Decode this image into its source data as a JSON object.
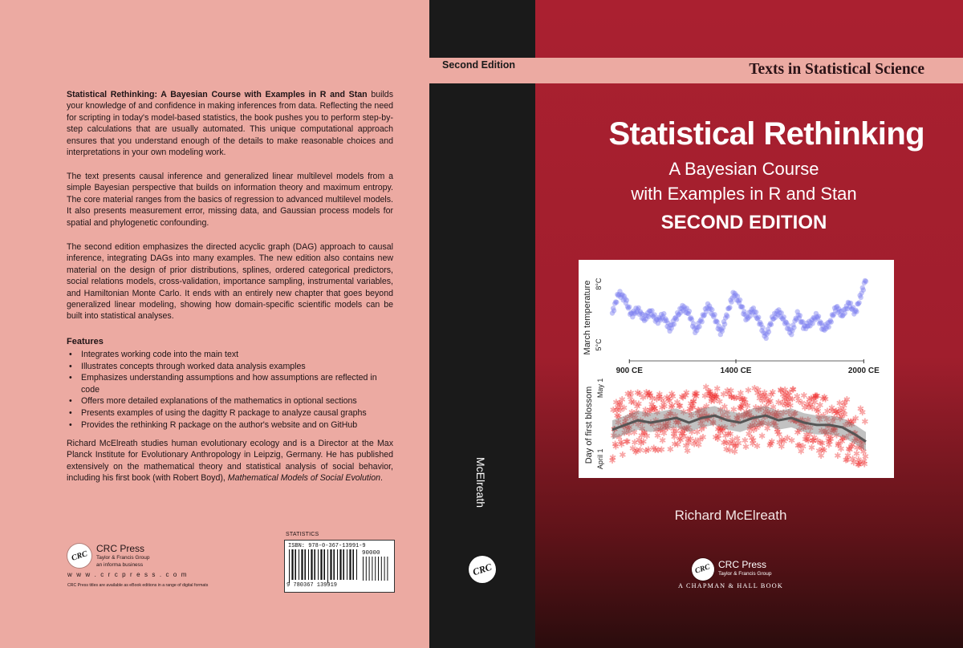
{
  "back_cover": {
    "paragraphs": [
      {
        "lead": "Statistical Rethinking: A Bayesian Course with Examples in R and Stan",
        "text": " builds your knowledge of and confidence in making inferences from data. Reflecting the need for scripting in today's model-based statistics, the book pushes you to perform step-by-step calculations that are usually automated. This unique computational approach ensures that you understand enough of the details to make reasonable choices and interpretations in your own modeling work."
      },
      {
        "text": "The text presents causal inference and generalized linear multilevel models from a simple Bayesian perspective that builds on information theory and maximum entropy. The core material ranges from the basics of regression to advanced multilevel models. It also presents measurement error, missing data, and Gaussian process models for spatial and phylogenetic confounding."
      },
      {
        "text": "The second edition emphasizes the directed acyclic graph (DAG) approach to causal inference, integrating DAGs into many examples. The new edition also contains new material on the design of prior distributions, splines, ordered categorical predictors, social relations models, cross-validation, importance sampling, instrumental variables, and Hamiltonian Monte Carlo. It ends with an entirely new chapter that goes beyond generalized linear modeling, showing how domain-specific scientific models can be built into statistical analyses."
      }
    ],
    "features_heading": "Features",
    "features": [
      "Integrates working code into the main text",
      "Illustrates concepts through worked data analysis examples",
      "Emphasizes understanding assumptions and how assumptions are reflected in code",
      "Offers more detailed explanations of the mathematics in optional sections",
      "Presents examples of using the dagitty R package to analyze causal graphs",
      "Provides the rethinking R package on the author's website and on GitHub"
    ],
    "bio": {
      "text": "Richard McElreath studies human evolutionary ecology and is a Director at the Max Planck Institute for Evolutionary Anthropology in Leipzig, Germany. He has published extensively on the mathematical theory and statistical analysis of social behavior, including his first book (with Robert Boyd), ",
      "book": "Mathematical Models of Social Evolution",
      "tail": "."
    },
    "publisher": {
      "logo_text": "CRC",
      "name": "CRC Press",
      "group": "Taylor & Francis Group",
      "informa": "an informa business",
      "url": "w w w . c r c p r e s s . c o m",
      "ebook_note": "CRC Press titles are available as eBook editions in a range of digital formats"
    },
    "category": "STATISTICS",
    "isbn_line": "ISBN: 978-0-367-13991-9",
    "price_code": "90000",
    "ean_digits": "9 780367 139919"
  },
  "spine": {
    "edition": "Second Edition",
    "title": "Statistical Rethinking",
    "author": "McElreath",
    "logo_text": "CRC"
  },
  "front_cover": {
    "series": "Texts in Statistical Science",
    "title": "Statistical Rethinking",
    "subtitle_line1": "A Bayesian Course",
    "subtitle_line2": "with Examples in R and Stan",
    "edition": "SECOND EDITION",
    "author": "Richard McElreath",
    "publisher": {
      "logo_text": "CRC",
      "name": "CRC Press",
      "group": "Taylor & Francis Group",
      "imprint": "A CHAPMAN & HALL BOOK"
    }
  },
  "chart_data": [
    {
      "type": "scatter",
      "title": "",
      "ylabel": "March temperature",
      "x_ticks": [
        "900 CE",
        "1400 CE",
        "2000 CE"
      ],
      "y_ticks": [
        "5°C",
        "8°C"
      ],
      "xlim": [
        820,
        2010
      ],
      "ylim": [
        4.6,
        8.4
      ],
      "series": [
        {
          "color": "#7d7ff0",
          "x": [
            820,
            850,
            880,
            910,
            940,
            970,
            1000,
            1030,
            1060,
            1090,
            1120,
            1150,
            1180,
            1210,
            1240,
            1270,
            1300,
            1330,
            1360,
            1390,
            1420,
            1450,
            1480,
            1510,
            1540,
            1570,
            1600,
            1630,
            1660,
            1690,
            1720,
            1750,
            1780,
            1810,
            1840,
            1870,
            1900,
            1930,
            1960,
            1990,
            2010
          ],
          "y": [
            6.4,
            7.4,
            7.1,
            6.3,
            6.6,
            6.1,
            6.5,
            6.0,
            6.3,
            5.6,
            6.2,
            6.7,
            6.4,
            5.5,
            6.1,
            6.8,
            6.2,
            5.4,
            6.4,
            7.4,
            6.9,
            6.1,
            6.6,
            6.0,
            5.2,
            6.1,
            6.5,
            6.0,
            5.4,
            6.4,
            5.7,
            5.9,
            6.3,
            5.6,
            5.9,
            6.7,
            6.3,
            6.9,
            6.4,
            7.4,
            8.1
          ]
        }
      ]
    },
    {
      "type": "scatter",
      "title": "",
      "ylabel": "Day of first blossom",
      "y_ticks": [
        "April 1",
        "May 1"
      ],
      "ylim": [
        85,
        125
      ],
      "series": [
        {
          "color": "#555555",
          "x": [
            820,
            880,
            940,
            1000,
            1060,
            1120,
            1180,
            1240,
            1300,
            1360,
            1420,
            1480,
            1540,
            1600,
            1660,
            1720,
            1780,
            1840,
            1900,
            1960,
            2010
          ],
          "y": [
            102,
            104,
            106,
            105,
            106,
            107,
            105,
            107,
            108,
            106,
            105,
            107,
            108,
            106,
            107,
            105,
            104,
            104,
            103,
            100,
            97
          ]
        }
      ]
    }
  ]
}
